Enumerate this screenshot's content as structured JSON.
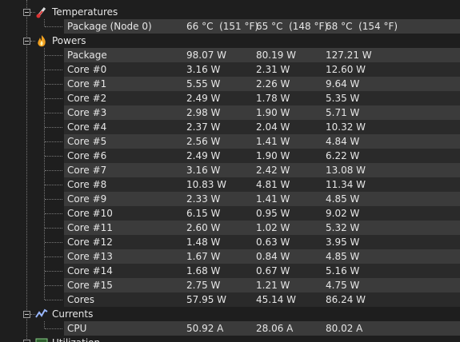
{
  "groups": [
    {
      "label": "Temperatures",
      "rows": [
        {
          "name": "Package (Node 0)",
          "values": [
            "66 °C  (151 °F)",
            "65 °C  (148 °F)",
            "68 °C  (154 °F)"
          ]
        }
      ]
    },
    {
      "label": "Powers",
      "rows": [
        {
          "name": "Package",
          "values": [
            "98.07 W",
            "80.19 W",
            "127.21 W"
          ]
        },
        {
          "name": "Core #0",
          "values": [
            "3.16 W",
            "2.31 W",
            "12.60 W"
          ]
        },
        {
          "name": "Core #1",
          "values": [
            "5.55 W",
            "2.26 W",
            "9.64 W"
          ]
        },
        {
          "name": "Core #2",
          "values": [
            "2.49 W",
            "1.78 W",
            "5.35 W"
          ]
        },
        {
          "name": "Core #3",
          "values": [
            "2.98 W",
            "1.90 W",
            "5.71 W"
          ]
        },
        {
          "name": "Core #4",
          "values": [
            "2.37 W",
            "2.04 W",
            "10.32 W"
          ]
        },
        {
          "name": "Core #5",
          "values": [
            "2.56 W",
            "1.41 W",
            "4.84 W"
          ]
        },
        {
          "name": "Core #6",
          "values": [
            "2.49 W",
            "1.90 W",
            "6.22 W"
          ]
        },
        {
          "name": "Core #7",
          "values": [
            "3.16 W",
            "2.42 W",
            "13.08 W"
          ]
        },
        {
          "name": "Core #8",
          "values": [
            "10.83 W",
            "4.81 W",
            "11.34 W"
          ]
        },
        {
          "name": "Core #9",
          "values": [
            "2.33 W",
            "1.41 W",
            "4.85 W"
          ]
        },
        {
          "name": "Core #10",
          "values": [
            "6.15 W",
            "0.95 W",
            "9.02 W"
          ]
        },
        {
          "name": "Core #11",
          "values": [
            "2.60 W",
            "1.02 W",
            "5.32 W"
          ]
        },
        {
          "name": "Core #12",
          "values": [
            "1.48 W",
            "0.63 W",
            "3.95 W"
          ]
        },
        {
          "name": "Core #13",
          "values": [
            "1.67 W",
            "0.84 W",
            "4.85 W"
          ]
        },
        {
          "name": "Core #14",
          "values": [
            "1.68 W",
            "0.67 W",
            "5.16 W"
          ]
        },
        {
          "name": "Core #15",
          "values": [
            "2.75 W",
            "1.21 W",
            "4.75 W"
          ]
        },
        {
          "name": "Cores",
          "values": [
            "57.95 W",
            "45.14 W",
            "86.24 W"
          ]
        }
      ]
    },
    {
      "label": "Currents",
      "rows": [
        {
          "name": "CPU",
          "values": [
            "50.92 A",
            "28.06 A",
            "80.02 A"
          ]
        }
      ]
    },
    {
      "label": "Utilization",
      "rows": []
    }
  ]
}
